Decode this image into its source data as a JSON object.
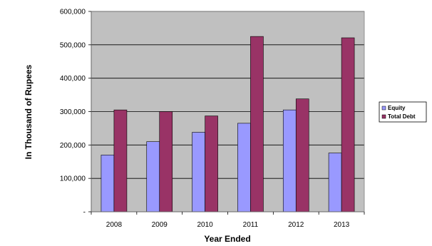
{
  "chart_data": {
    "type": "bar",
    "categories": [
      "2008",
      "2009",
      "2010",
      "2011",
      "2012",
      "2013"
    ],
    "series": [
      {
        "name": "Equity",
        "values": [
          170000,
          210000,
          238000,
          265000,
          305000,
          176000
        ],
        "color": "#9999ff"
      },
      {
        "name": "Total Debt",
        "values": [
          305000,
          300000,
          287000,
          525000,
          338000,
          521000
        ],
        "color": "#993366"
      }
    ],
    "xlabel": "Year Ended",
    "ylabel": "In Thousand of Rupees",
    "ylim": [
      0,
      600000
    ],
    "yticks": [
      0,
      100000,
      200000,
      300000,
      400000,
      500000,
      600000
    ],
    "ytick_labels": [
      "-",
      "100,000",
      "200,000",
      "300,000",
      "400,000",
      "500,000",
      "600,000"
    ],
    "grid": true,
    "plot_background": "#c0c0c0",
    "legend_position": "right"
  }
}
